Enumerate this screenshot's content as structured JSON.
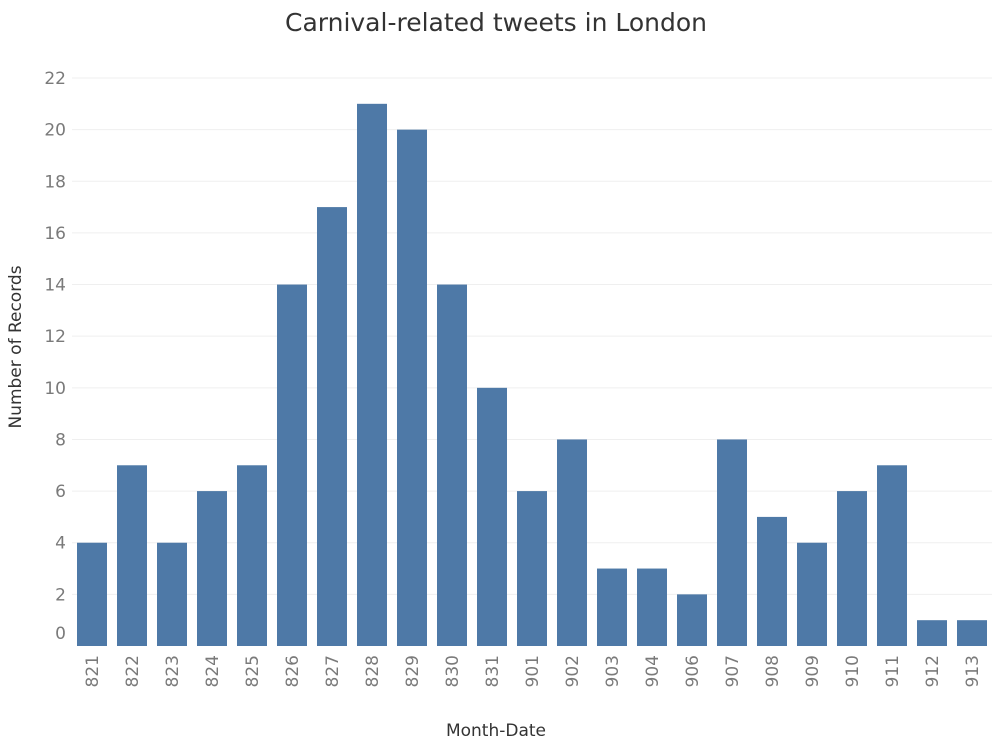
{
  "chart_data": {
    "type": "bar",
    "title": "Carnival-related tweets in London",
    "xlabel": "Month-Date",
    "ylabel": "Number of Records",
    "categories": [
      "821",
      "822",
      "823",
      "824",
      "825",
      "826",
      "827",
      "828",
      "829",
      "830",
      "831",
      "901",
      "902",
      "903",
      "904",
      "906",
      "907",
      "908",
      "909",
      "910",
      "911",
      "912",
      "913"
    ],
    "values": [
      4,
      7,
      4,
      6,
      7,
      14,
      17,
      21,
      20,
      14,
      10,
      6,
      8,
      3,
      3,
      2,
      8,
      5,
      4,
      6,
      7,
      1,
      1
    ],
    "ylim": [
      0,
      22
    ],
    "yticks": [
      0,
      2,
      4,
      6,
      8,
      10,
      12,
      14,
      16,
      18,
      20,
      22
    ],
    "grid": true,
    "legend": "none",
    "bar_color": "#4e79a7",
    "gridline_color": "#efefef"
  }
}
